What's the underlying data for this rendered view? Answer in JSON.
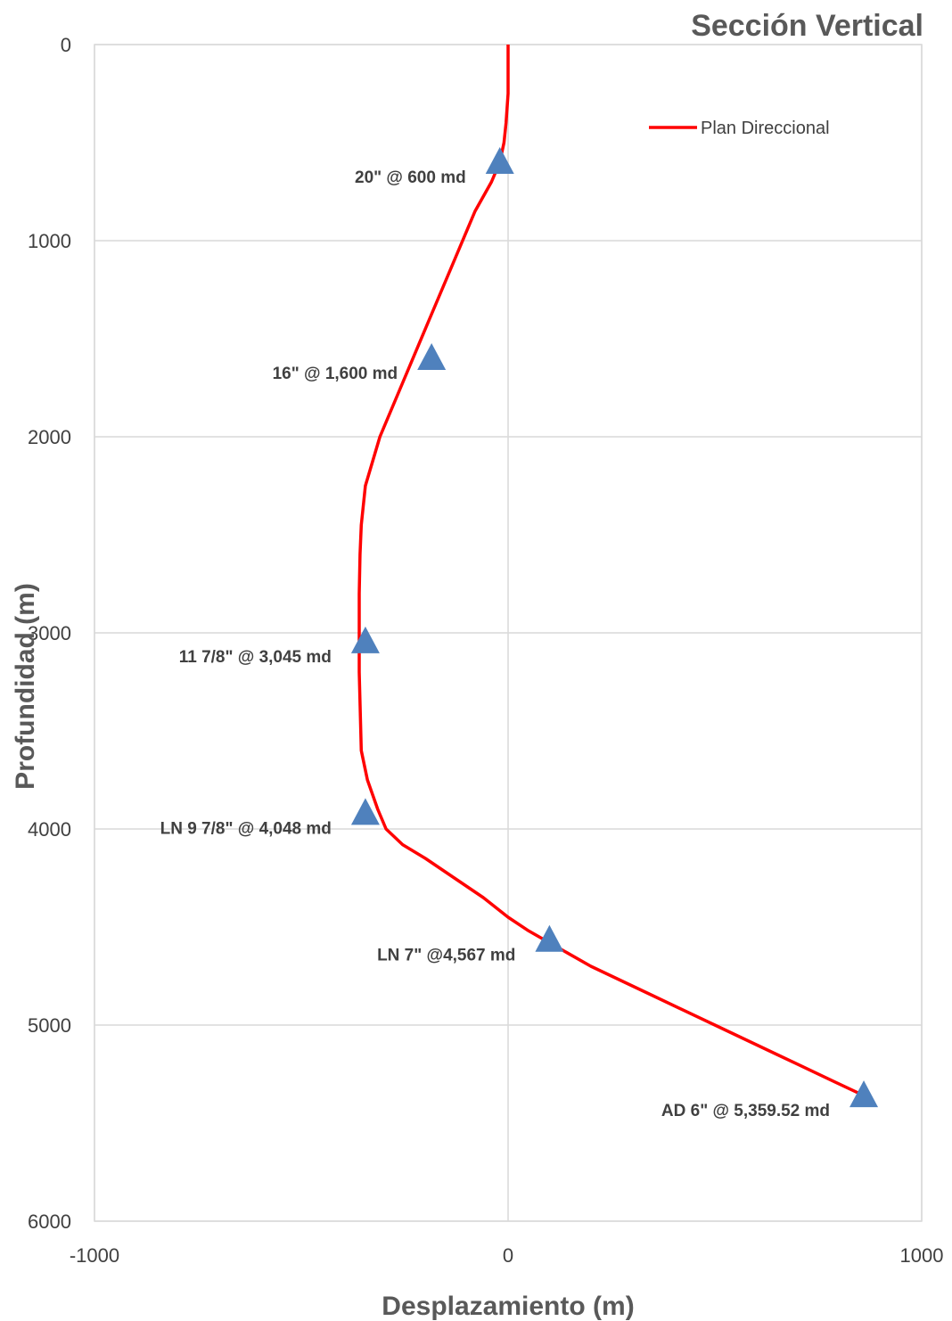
{
  "chart_data": {
    "type": "line",
    "title": "Sección Vertical",
    "xlabel": "Desplazamiento (m)",
    "ylabel": "Profundidad (m)",
    "xlim": [
      -1000,
      1000
    ],
    "ylim": [
      0,
      6000
    ],
    "y_inverted": true,
    "grid": true,
    "legend_position": "top-right",
    "x_ticks": [
      "-1000",
      "0",
      "1000"
    ],
    "y_ticks": [
      "0",
      "1000",
      "2000",
      "3000",
      "4000",
      "5000",
      "6000"
    ],
    "series": [
      {
        "name": "Plan Direccional",
        "color": "#ff0000",
        "x": [
          0,
          0,
          -5,
          -10,
          -20,
          -40,
          -80,
          -130,
          -190,
          -250,
          -310,
          -345,
          -355,
          -358,
          -360,
          -360,
          -355,
          -340,
          -315,
          -295,
          -255,
          -200,
          -130,
          -60,
          0,
          50,
          100,
          200,
          350,
          500,
          650,
          790,
          860
        ],
        "y": [
          0,
          250,
          400,
          500,
          600,
          700,
          850,
          1100,
          1400,
          1700,
          2000,
          2250,
          2450,
          2600,
          2800,
          3200,
          3600,
          3750,
          3900,
          4000,
          4080,
          4150,
          4250,
          4350,
          4450,
          4520,
          4580,
          4700,
          4850,
          5000,
          5150,
          5290,
          5359.52
        ]
      }
    ],
    "markers": {
      "color": "#4f81bd",
      "shape": "triangle",
      "points": [
        {
          "x": -20,
          "y": 600,
          "label": "20\" @ 600 md"
        },
        {
          "x": -185,
          "y": 1600,
          "label": "16\" @ 1,600 md"
        },
        {
          "x": -345,
          "y": 3045,
          "label": "11 7/8\" @ 3,045 md"
        },
        {
          "x": -345,
          "y": 3920,
          "label": "LN 9 7/8\" @ 4,048 md"
        },
        {
          "x": 100,
          "y": 4567,
          "label": "LN 7\" @4,567 md"
        },
        {
          "x": 860,
          "y": 5359.52,
          "label": "AD 6\" @ 5,359.52 md"
        }
      ]
    }
  }
}
